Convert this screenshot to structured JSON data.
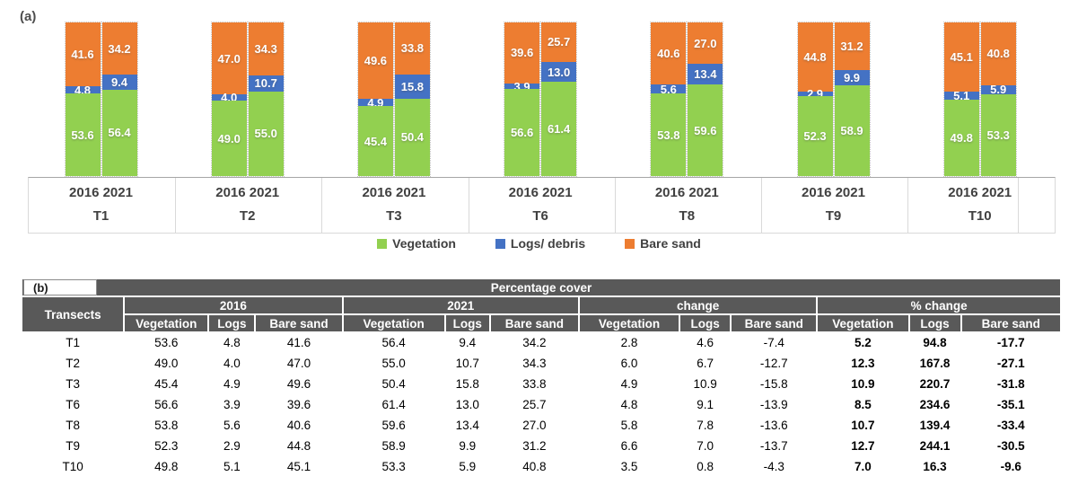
{
  "figure_a_label": "(a)",
  "figure_b_label": "(b)",
  "chart_data": {
    "type": "bar",
    "stacked": true,
    "categories": [
      "T1",
      "T2",
      "T3",
      "T6",
      "T8",
      "T9",
      "T10"
    ],
    "years": [
      "2016",
      "2021"
    ],
    "legend": [
      {
        "key": "vegetation",
        "label": "Vegetation"
      },
      {
        "key": "logs",
        "label": "Logs/ debris"
      },
      {
        "key": "bare_sand",
        "label": "Bare sand"
      }
    ],
    "colors": {
      "vegetation": "#92D050",
      "logs": "#4472C4",
      "bare_sand": "#ED7D31"
    },
    "ylim": [
      0,
      100
    ],
    "legend_position": "bottom",
    "groups": [
      {
        "transect": "T1",
        "y2016": [
          "53.6",
          "4.8",
          "41.6"
        ],
        "y2021": [
          "56.4",
          "9.4",
          "34.2"
        ]
      },
      {
        "transect": "T2",
        "y2016": [
          "49.0",
          "4.0",
          "47.0"
        ],
        "y2021": [
          "55.0",
          "10.7",
          "34.3"
        ]
      },
      {
        "transect": "T3",
        "y2016": [
          "45.4",
          "4.9",
          "49.6"
        ],
        "y2021": [
          "50.4",
          "15.8",
          "33.8"
        ]
      },
      {
        "transect": "T6",
        "y2016": [
          "56.6",
          "3.9",
          "39.6"
        ],
        "y2021": [
          "61.4",
          "13.0",
          "25.7"
        ]
      },
      {
        "transect": "T8",
        "y2016": [
          "53.8",
          "5.6",
          "40.6"
        ],
        "y2021": [
          "59.6",
          "13.4",
          "27.0"
        ]
      },
      {
        "transect": "T9",
        "y2016": [
          "52.3",
          "2.9",
          "44.8"
        ],
        "y2021": [
          "58.9",
          "9.9",
          "31.2"
        ]
      },
      {
        "transect": "T10",
        "y2016": [
          "49.8",
          "5.1",
          "45.1"
        ],
        "y2021": [
          "53.3",
          "5.9",
          "40.8"
        ]
      }
    ]
  },
  "table": {
    "title": "Percentage cover",
    "row_header": "Transects",
    "groups": [
      "2016",
      "2021",
      "change",
      "% change"
    ],
    "sub_columns": [
      "Vegetation",
      "Logs",
      "Bare sand"
    ],
    "rows": [
      {
        "transect": "T1",
        "y2016": [
          "53.6",
          "4.8",
          "41.6"
        ],
        "y2021": [
          "56.4",
          "9.4",
          "34.2"
        ],
        "change": [
          "2.8",
          "4.6",
          "-7.4"
        ],
        "pct_change": [
          "5.2",
          "94.8",
          "-17.7"
        ]
      },
      {
        "transect": "T2",
        "y2016": [
          "49.0",
          "4.0",
          "47.0"
        ],
        "y2021": [
          "55.0",
          "10.7",
          "34.3"
        ],
        "change": [
          "6.0",
          "6.7",
          "-12.7"
        ],
        "pct_change": [
          "12.3",
          "167.8",
          "-27.1"
        ]
      },
      {
        "transect": "T3",
        "y2016": [
          "45.4",
          "4.9",
          "49.6"
        ],
        "y2021": [
          "50.4",
          "15.8",
          "33.8"
        ],
        "change": [
          "4.9",
          "10.9",
          "-15.8"
        ],
        "pct_change": [
          "10.9",
          "220.7",
          "-31.8"
        ]
      },
      {
        "transect": "T6",
        "y2016": [
          "56.6",
          "3.9",
          "39.6"
        ],
        "y2021": [
          "61.4",
          "13.0",
          "25.7"
        ],
        "change": [
          "4.8",
          "9.1",
          "-13.9"
        ],
        "pct_change": [
          "8.5",
          "234.6",
          "-35.1"
        ]
      },
      {
        "transect": "T8",
        "y2016": [
          "53.8",
          "5.6",
          "40.6"
        ],
        "y2021": [
          "59.6",
          "13.4",
          "27.0"
        ],
        "change": [
          "5.8",
          "7.8",
          "-13.6"
        ],
        "pct_change": [
          "10.7",
          "139.4",
          "-33.4"
        ]
      },
      {
        "transect": "T9",
        "y2016": [
          "52.3",
          "2.9",
          "44.8"
        ],
        "y2021": [
          "58.9",
          "9.9",
          "31.2"
        ],
        "change": [
          "6.6",
          "7.0",
          "-13.7"
        ],
        "pct_change": [
          "12.7",
          "244.1",
          "-30.5"
        ]
      },
      {
        "transect": "T10",
        "y2016": [
          "49.8",
          "5.1",
          "45.1"
        ],
        "y2021": [
          "53.3",
          "5.9",
          "40.8"
        ],
        "change": [
          "3.5",
          "0.8",
          "-4.3"
        ],
        "pct_change": [
          "7.0",
          "16.3",
          "-9.6"
        ]
      }
    ]
  }
}
